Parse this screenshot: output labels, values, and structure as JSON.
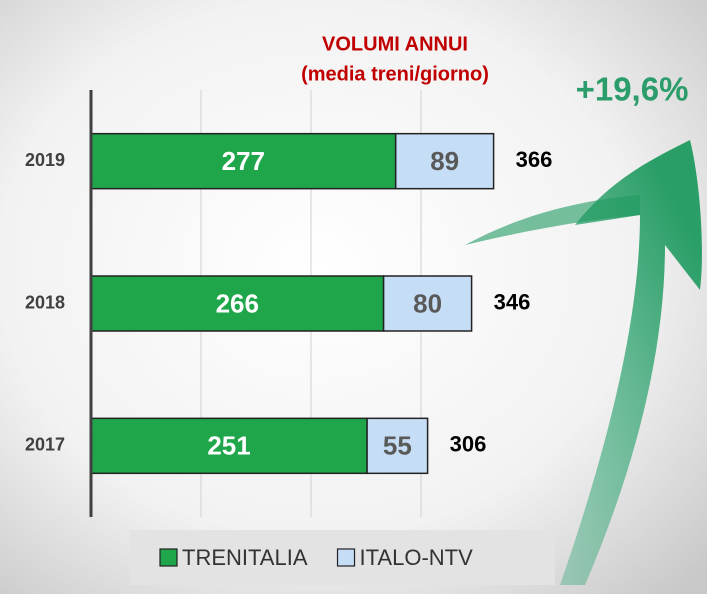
{
  "chart_data": {
    "type": "stacked-barh",
    "title": "VOLUMI ANNUI",
    "subtitle": "(media treni/giorno)",
    "annotation": "+19,6%",
    "categories": [
      "2017",
      "2018",
      "2019"
    ],
    "series": [
      {
        "name": "TRENITALIA",
        "color": "#1fa64b",
        "label_color": "#ffffff",
        "values": [
          251,
          266,
          277
        ]
      },
      {
        "name": "ITALO-NTV",
        "color": "#c6ddf6",
        "label_color": "#595959",
        "values": [
          55,
          80,
          89
        ]
      }
    ],
    "totals": [
      306,
      346,
      366
    ],
    "xlim": [
      0,
      400
    ],
    "xticks": [
      100,
      200,
      300
    ],
    "grid": true,
    "legend": "bottom"
  }
}
